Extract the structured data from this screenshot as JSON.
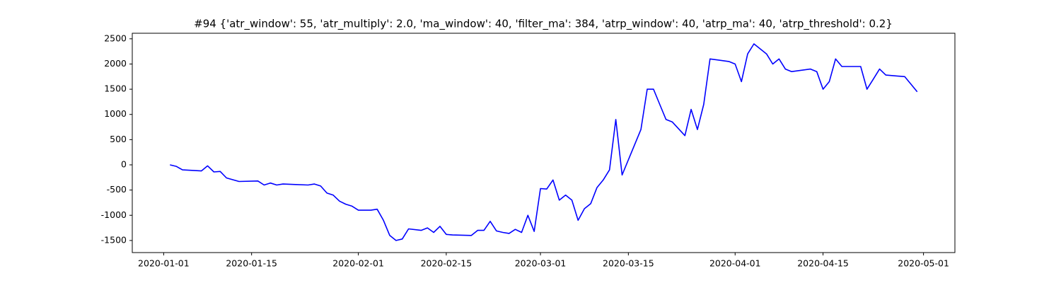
{
  "chart_data": {
    "type": "line",
    "title": "#94 {'atr_window': 55, 'atr_multiply': 2.0, 'ma_window': 40, 'filter_ma': 384, 'atrp_window': 40, 'atrp_ma': 40, 'atrp_threshold': 0.2}",
    "x": [
      "2020-01-02",
      "2020-01-03",
      "2020-01-04",
      "2020-01-07",
      "2020-01-08",
      "2020-01-09",
      "2020-01-10",
      "2020-01-11",
      "2020-01-13",
      "2020-01-16",
      "2020-01-17",
      "2020-01-18",
      "2020-01-19",
      "2020-01-20",
      "2020-01-22",
      "2020-01-24",
      "2020-01-25",
      "2020-01-26",
      "2020-01-27",
      "2020-01-28",
      "2020-01-29",
      "2020-01-30",
      "2020-01-31",
      "2020-02-01",
      "2020-02-03",
      "2020-02-04",
      "2020-02-05",
      "2020-02-06",
      "2020-02-07",
      "2020-02-08",
      "2020-02-09",
      "2020-02-11",
      "2020-02-12",
      "2020-02-13",
      "2020-02-14",
      "2020-02-15",
      "2020-02-16",
      "2020-02-19",
      "2020-02-20",
      "2020-02-21",
      "2020-02-22",
      "2020-02-23",
      "2020-02-24",
      "2020-02-25",
      "2020-02-26",
      "2020-02-27",
      "2020-02-28",
      "2020-02-29",
      "2020-03-01",
      "2020-03-02",
      "2020-03-03",
      "2020-03-04",
      "2020-03-05",
      "2020-03-06",
      "2020-03-07",
      "2020-03-08",
      "2020-03-09",
      "2020-03-10",
      "2020-03-11",
      "2020-03-12",
      "2020-03-13",
      "2020-03-14",
      "2020-03-17",
      "2020-03-18",
      "2020-03-19",
      "2020-03-20",
      "2020-03-21",
      "2020-03-22",
      "2020-03-24",
      "2020-03-25",
      "2020-03-26",
      "2020-03-27",
      "2020-03-28",
      "2020-03-31",
      "2020-04-01",
      "2020-04-02",
      "2020-04-03",
      "2020-04-04",
      "2020-04-05",
      "2020-04-06",
      "2020-04-07",
      "2020-04-08",
      "2020-04-09",
      "2020-04-10",
      "2020-04-13",
      "2020-04-14",
      "2020-04-15",
      "2020-04-16",
      "2020-04-17",
      "2020-04-18",
      "2020-04-21",
      "2020-04-22",
      "2020-04-23",
      "2020-04-24",
      "2020-04-25",
      "2020-04-28",
      "2020-04-29",
      "2020-04-30"
    ],
    "series": [
      {
        "color": "#0000ff",
        "values": [
          0,
          -30,
          -100,
          -120,
          -20,
          -140,
          -130,
          -260,
          -330,
          -320,
          -400,
          -360,
          -400,
          -380,
          -390,
          -400,
          -380,
          -420,
          -560,
          -600,
          -720,
          -780,
          -820,
          -900,
          -900,
          -880,
          -1100,
          -1400,
          -1500,
          -1470,
          -1270,
          -1300,
          -1250,
          -1340,
          -1220,
          -1380,
          -1390,
          -1400,
          -1300,
          -1300,
          -1120,
          -1310,
          -1340,
          -1360,
          -1280,
          -1340,
          -1000,
          -1320,
          -470,
          -480,
          -300,
          -700,
          -600,
          -700,
          -1100,
          -870,
          -770,
          -450,
          -300,
          -100,
          900,
          -200,
          700,
          1500,
          1500,
          1200,
          900,
          850,
          580,
          1100,
          700,
          1200,
          2100,
          2050,
          2000,
          1650,
          2200,
          2400,
          2300,
          2200,
          2000,
          2100,
          1900,
          1850,
          1900,
          1850,
          1500,
          1650,
          2100,
          1950,
          1950,
          1500,
          1700,
          1900,
          1780,
          1750,
          1600,
          1450
        ]
      }
    ],
    "xlim": [
      "2019-12-27",
      "2020-05-06"
    ],
    "xticks": [
      "2020-01-01",
      "2020-01-15",
      "2020-02-01",
      "2020-02-15",
      "2020-03-01",
      "2020-03-15",
      "2020-04-01",
      "2020-04-15",
      "2020-05-01"
    ],
    "ylim": [
      -1740,
      2610
    ],
    "yticks": [
      -1500,
      -1000,
      -500,
      0,
      500,
      1000,
      1500,
      2000,
      2500
    ]
  }
}
